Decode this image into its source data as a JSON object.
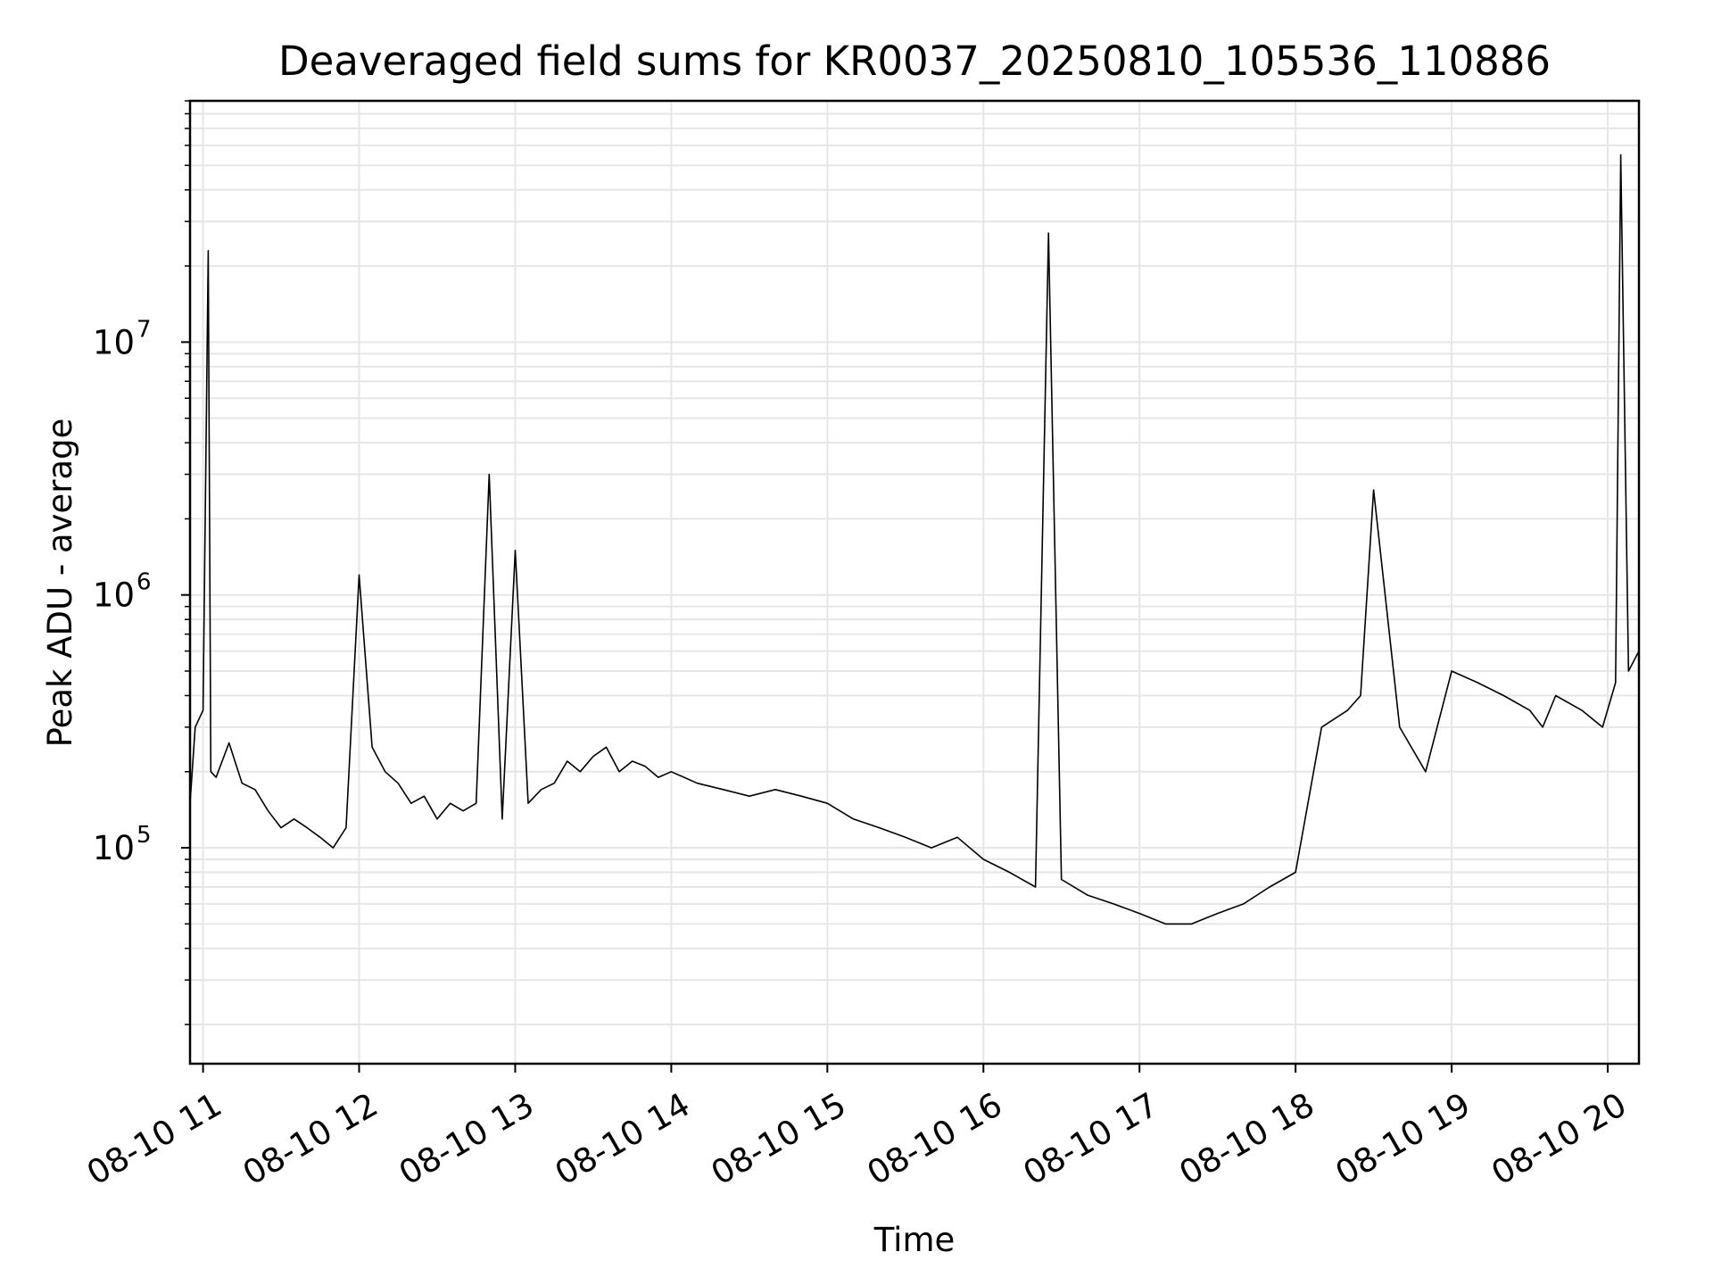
{
  "chart_data": {
    "type": "line",
    "title": "Deaveraged field sums for KR0037_20250810_105536_110886",
    "xlabel": "Time",
    "ylabel": "Peak ADU - average",
    "y_scale": "log",
    "ylim": [
      14000,
      90000000
    ],
    "xlim": [
      "2025-08-10 10:55",
      "2025-08-10 20:12"
    ],
    "grid": true,
    "line_color": "#000000",
    "grid_color": "#e6e6e6",
    "x_ticks": [
      {
        "label": "08-10 11",
        "t": "2025-08-10 11:00"
      },
      {
        "label": "08-10 12",
        "t": "2025-08-10 12:00"
      },
      {
        "label": "08-10 13",
        "t": "2025-08-10 13:00"
      },
      {
        "label": "08-10 14",
        "t": "2025-08-10 14:00"
      },
      {
        "label": "08-10 15",
        "t": "2025-08-10 15:00"
      },
      {
        "label": "08-10 16",
        "t": "2025-08-10 16:00"
      },
      {
        "label": "08-10 17",
        "t": "2025-08-10 17:00"
      },
      {
        "label": "08-10 18",
        "t": "2025-08-10 18:00"
      },
      {
        "label": "08-10 19",
        "t": "2025-08-10 19:00"
      },
      {
        "label": "08-10 20",
        "t": "2025-08-10 20:00"
      }
    ],
    "y_ticks": [
      {
        "base": "10",
        "exp": "5",
        "value": 100000
      },
      {
        "base": "10",
        "exp": "6",
        "value": 1000000
      },
      {
        "base": "10",
        "exp": "7",
        "value": 10000000
      }
    ],
    "series": [
      {
        "x": [
          "2025-08-10 10:55",
          "2025-08-10 10:57",
          "2025-08-10 11:00",
          "2025-08-10 11:02",
          "2025-08-10 11:03",
          "2025-08-10 11:05",
          "2025-08-10 11:10",
          "2025-08-10 11:15",
          "2025-08-10 11:20",
          "2025-08-10 11:25",
          "2025-08-10 11:30",
          "2025-08-10 11:35",
          "2025-08-10 11:40",
          "2025-08-10 11:45",
          "2025-08-10 11:50",
          "2025-08-10 11:55",
          "2025-08-10 12:00",
          "2025-08-10 12:05",
          "2025-08-10 12:10",
          "2025-08-10 12:15",
          "2025-08-10 12:20",
          "2025-08-10 12:25",
          "2025-08-10 12:30",
          "2025-08-10 12:35",
          "2025-08-10 12:40",
          "2025-08-10 12:45",
          "2025-08-10 12:50",
          "2025-08-10 12:55",
          "2025-08-10 13:00",
          "2025-08-10 13:05",
          "2025-08-10 13:10",
          "2025-08-10 13:15",
          "2025-08-10 13:20",
          "2025-08-10 13:25",
          "2025-08-10 13:30",
          "2025-08-10 13:35",
          "2025-08-10 13:40",
          "2025-08-10 13:45",
          "2025-08-10 13:50",
          "2025-08-10 13:55",
          "2025-08-10 14:00",
          "2025-08-10 14:10",
          "2025-08-10 14:20",
          "2025-08-10 14:30",
          "2025-08-10 14:40",
          "2025-08-10 14:50",
          "2025-08-10 15:00",
          "2025-08-10 15:10",
          "2025-08-10 15:20",
          "2025-08-10 15:30",
          "2025-08-10 15:40",
          "2025-08-10 15:50",
          "2025-08-10 16:00",
          "2025-08-10 16:10",
          "2025-08-10 16:20",
          "2025-08-10 16:25",
          "2025-08-10 16:30",
          "2025-08-10 16:40",
          "2025-08-10 16:50",
          "2025-08-10 17:00",
          "2025-08-10 17:10",
          "2025-08-10 17:20",
          "2025-08-10 17:30",
          "2025-08-10 17:40",
          "2025-08-10 17:50",
          "2025-08-10 18:00",
          "2025-08-10 18:10",
          "2025-08-10 18:20",
          "2025-08-10 18:25",
          "2025-08-10 18:30",
          "2025-08-10 18:40",
          "2025-08-10 18:50",
          "2025-08-10 19:00",
          "2025-08-10 19:10",
          "2025-08-10 19:20",
          "2025-08-10 19:30",
          "2025-08-10 19:35",
          "2025-08-10 19:40",
          "2025-08-10 19:50",
          "2025-08-10 19:58",
          "2025-08-10 20:03",
          "2025-08-10 20:05",
          "2025-08-10 20:08",
          "2025-08-10 20:12"
        ],
        "y": [
          150000,
          300000,
          350000,
          23000000,
          200000,
          190000,
          260000,
          180000,
          170000,
          140000,
          120000,
          130000,
          120000,
          110000,
          100000,
          120000,
          1200000,
          250000,
          200000,
          180000,
          150000,
          160000,
          130000,
          150000,
          140000,
          150000,
          3000000,
          130000,
          1500000,
          150000,
          170000,
          180000,
          220000,
          200000,
          230000,
          250000,
          200000,
          220000,
          210000,
          190000,
          200000,
          180000,
          170000,
          160000,
          170000,
          160000,
          150000,
          130000,
          120000,
          110000,
          100000,
          110000,
          90000,
          80000,
          70000,
          27000000,
          75000,
          65000,
          60000,
          55000,
          50000,
          50000,
          55000,
          60000,
          70000,
          80000,
          300000,
          350000,
          400000,
          2600000,
          300000,
          200000,
          500000,
          450000,
          400000,
          350000,
          300000,
          400000,
          350000,
          300000,
          450000,
          55000000,
          500000,
          600000
        ]
      }
    ]
  }
}
